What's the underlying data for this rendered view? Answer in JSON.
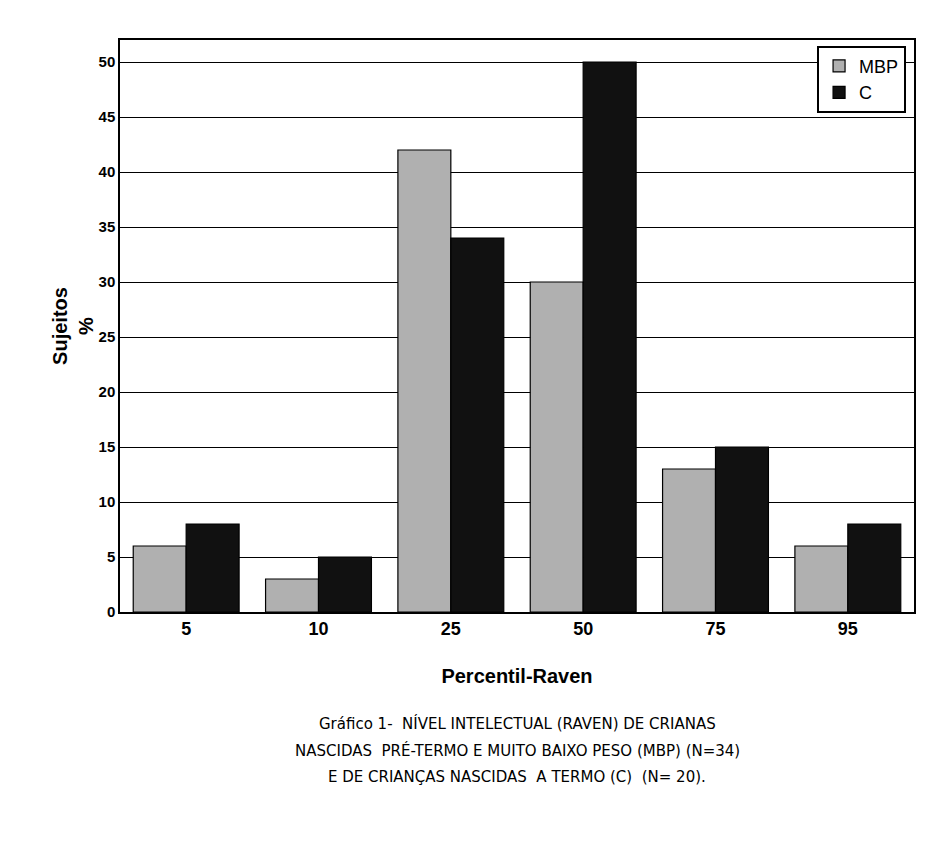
{
  "chart_data": {
    "type": "bar",
    "categories": [
      "5",
      "10",
      "25",
      "50",
      "75",
      "95"
    ],
    "series": [
      {
        "name": "MBP",
        "color": "#b0b0b0",
        "values": [
          6,
          3,
          42,
          30,
          13,
          6
        ]
      },
      {
        "name": "C",
        "color": "#111111",
        "values": [
          8,
          5,
          34,
          50,
          15,
          8
        ]
      }
    ],
    "xlabel": "Percentil-Raven",
    "ylabel": "Sujeitos\n%",
    "ylim": [
      0,
      52
    ],
    "yticks": [
      0,
      5,
      10,
      15,
      20,
      25,
      30,
      35,
      40,
      45,
      50
    ],
    "grid": true,
    "legend": "upper right",
    "annotations": [
      "Gráfico 1-  NÍVEL INTELECTUAL (RAVEN) DE CRIANAS",
      "NASCIDAS  PRÉ-TERMO E MUITO BAIXO PESO (MBP) (N=34)",
      "E DE CRIANÇAS NASCIDAS  A TERMO (C)  (N= 20)."
    ]
  }
}
